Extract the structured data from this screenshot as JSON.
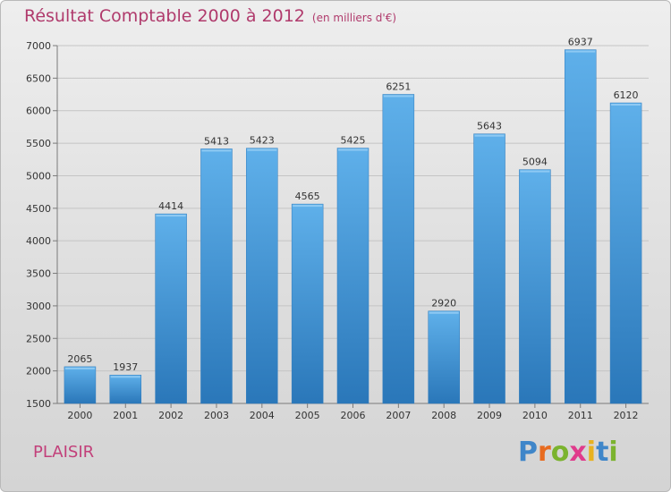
{
  "header": {
    "title": "Résultat Comptable 2000 à 2012",
    "unit": "(en milliers d'€)"
  },
  "footer": {
    "commune": "PLAISIR",
    "logo_letters": [
      {
        "char": "P",
        "color": "#3f86c9"
      },
      {
        "char": "r",
        "color": "#e86b1f"
      },
      {
        "char": "o",
        "color": "#7bb32e"
      },
      {
        "char": "x",
        "color": "#e03b8c"
      },
      {
        "char": "i",
        "color": "#e8b21f"
      },
      {
        "char": "t",
        "color": "#3f86c9"
      },
      {
        "char": "i",
        "color": "#7bb32e"
      }
    ]
  },
  "colors": {
    "bar_top": "#5fb0ea",
    "bar_bottom": "#2a77b9",
    "grid": "#c4c4c4",
    "axis": "#7a7a7a",
    "text": "#333333"
  },
  "chart_data": {
    "type": "bar",
    "title": "Résultat Comptable 2000 à 2012",
    "subtitle": "(en milliers d'€)",
    "xlabel": "",
    "ylabel": "",
    "ylim": [
      1500,
      7000
    ],
    "yticks": [
      1500,
      2000,
      2500,
      3000,
      3500,
      4000,
      4500,
      5000,
      5500,
      6000,
      6500,
      7000
    ],
    "grid": true,
    "categories": [
      "2000",
      "2001",
      "2002",
      "2003",
      "2004",
      "2005",
      "2006",
      "2007",
      "2008",
      "2009",
      "2010",
      "2011",
      "2012"
    ],
    "values": [
      2065,
      1937,
      4414,
      5413,
      5423,
      4565,
      5425,
      6251,
      2920,
      5643,
      5094,
      6937,
      6120
    ]
  }
}
